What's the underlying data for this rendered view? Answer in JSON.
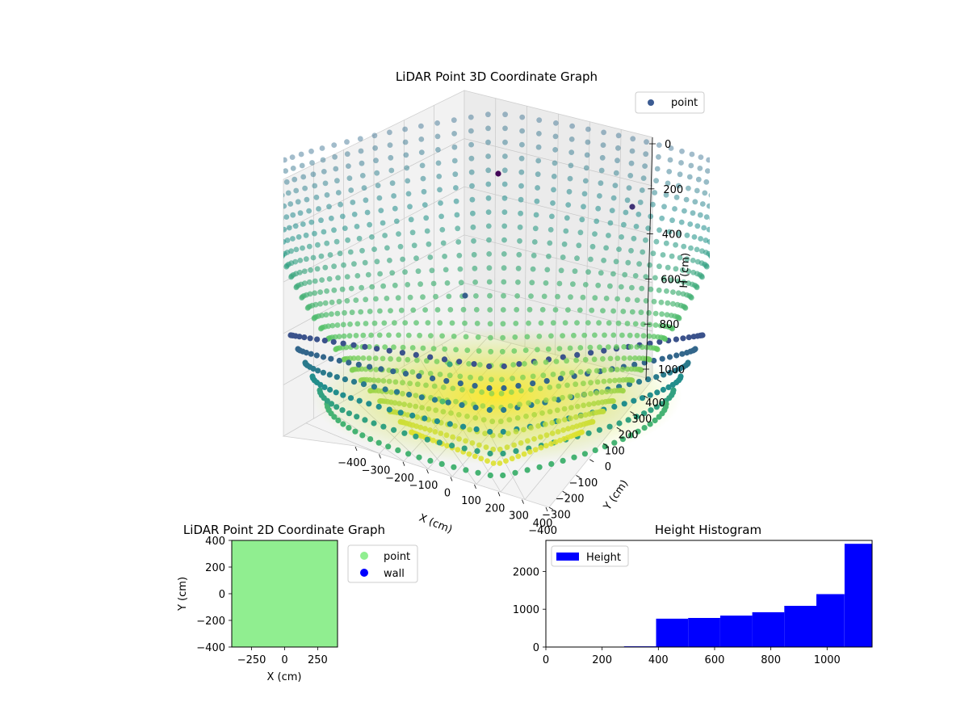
{
  "chart_data": [
    {
      "type": "scatter3d",
      "title": "LiDAR Point 3D Coordinate Graph",
      "xlabel": "X (cm)",
      "ylabel": "Y (cm)",
      "zlabel": "H (cm)",
      "x_ticks": [
        "−400",
        "−300",
        "−200",
        "−100",
        "0",
        "100",
        "200",
        "300",
        "400"
      ],
      "y_ticks": [
        "−400",
        "−300",
        "−200",
        "−100",
        "0",
        "100",
        "200",
        "300",
        "400"
      ],
      "z_ticks": [
        "0",
        "200",
        "400",
        "600",
        "800",
        "1000"
      ],
      "xlim": [
        -400,
        400
      ],
      "ylim": [
        -400,
        400
      ],
      "zlim": [
        0,
        1000
      ],
      "z_inverted": true,
      "grid": true,
      "colormap": "viridis",
      "legend": {
        "position": "top-right",
        "entries": [
          {
            "label": "point",
            "color": "#3b5b92"
          }
        ]
      },
      "series": [
        {
          "name": "point",
          "shape": "dome of radial scan lines, height rising toward the outer edge",
          "center_height": 1050,
          "edge_height": 100
        }
      ]
    },
    {
      "type": "scatter",
      "title": "LiDAR Point 2D Coordinate Graph",
      "xlabel": "X (cm)",
      "ylabel": "Y (cm)",
      "xlim": [
        -400,
        400
      ],
      "ylim": [
        -400,
        400
      ],
      "x_ticks": [
        "−250",
        "0",
        "250"
      ],
      "y_ticks": [
        "−400",
        "−200",
        "0",
        "200",
        "400"
      ],
      "legend": {
        "position": "outside-right",
        "entries": [
          {
            "label": "point",
            "color": "#90ee90"
          },
          {
            "label": "wall",
            "color": "#0000ff"
          }
        ]
      },
      "fill_color": "#90ee90",
      "series": [
        {
          "name": "point",
          "color": "#90ee90",
          "coverage": "dense, fills the whole area"
        },
        {
          "name": "wall",
          "color": "#0000ff",
          "coverage": "not visible"
        }
      ]
    },
    {
      "type": "bar",
      "title": "Height Histogram",
      "xlabel": "",
      "ylabel": "",
      "xlim": [
        0,
        1160
      ],
      "ylim": [
        0,
        2820
      ],
      "x_ticks": [
        "0",
        "200",
        "400",
        "600",
        "800",
        "1000"
      ],
      "y_ticks": [
        "0",
        "1000",
        "2000"
      ],
      "legend": {
        "position": "top-left",
        "entries": [
          {
            "label": "Height",
            "color": "#0000ff"
          }
        ]
      },
      "bar_color": "#0000ff",
      "bins": [
        {
          "from": 165,
          "to": 278,
          "count": 5
        },
        {
          "from": 278,
          "to": 392,
          "count": 20
        },
        {
          "from": 392,
          "to": 506,
          "count": 750
        },
        {
          "from": 506,
          "to": 620,
          "count": 770
        },
        {
          "from": 620,
          "to": 734,
          "count": 830
        },
        {
          "from": 734,
          "to": 848,
          "count": 920
        },
        {
          "from": 848,
          "to": 962,
          "count": 1090
        },
        {
          "from": 962,
          "to": 1062,
          "count": 1400
        },
        {
          "from": 1062,
          "to": 1160,
          "count": 2730
        }
      ]
    }
  ]
}
